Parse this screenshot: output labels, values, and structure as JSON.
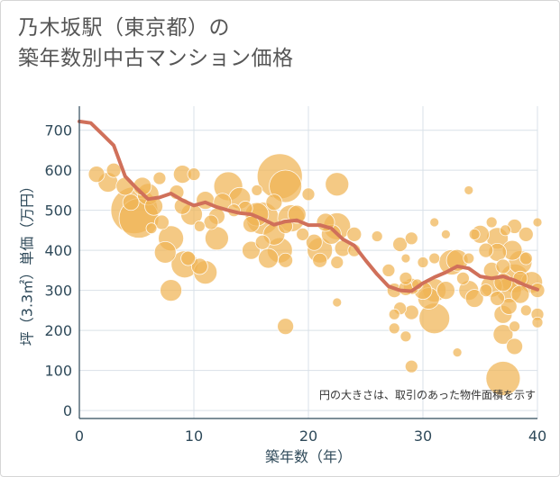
{
  "header": {
    "title_line1": "乃木坂駅（東京都）の",
    "title_line2": "築年数別中古マンション価格"
  },
  "colors": {
    "bubble": "#f0b455",
    "line": "#d0705a",
    "grid": "#d9e1e8",
    "axis": "#2f4a5a"
  },
  "chart_data": {
    "type": "scatter",
    "title": "乃木坂駅（東京都）の 築年数別中古マンション価格",
    "xlabel": "築年数（年）",
    "ylabel": "坪（3.3㎡）単価（万円）",
    "xlim": [
      0,
      40
    ],
    "ylim": [
      -20,
      760
    ],
    "xticks": [
      "0",
      "10",
      "20",
      "30",
      "40"
    ],
    "yticks": [
      "0",
      "100",
      "200",
      "300",
      "400",
      "500",
      "600",
      "700"
    ],
    "grid": true,
    "note": "円の大きさは、取引のあった物件面積を示す",
    "series": [
      {
        "type": "scatter",
        "points": [
          [
            1.5,
            590,
            9
          ],
          [
            2.5,
            570,
            11
          ],
          [
            3,
            600,
            8
          ],
          [
            4,
            560,
            10
          ],
          [
            4.5,
            520,
            9
          ],
          [
            4.8,
            500,
            26
          ],
          [
            5.2,
            480,
            22
          ],
          [
            5.5,
            560,
            10
          ],
          [
            6,
            540,
            12
          ],
          [
            6.3,
            455,
            6
          ],
          [
            6.5,
            510,
            10
          ],
          [
            7,
            580,
            7
          ],
          [
            7.2,
            470,
            8
          ],
          [
            7.5,
            395,
            12
          ],
          [
            8,
            430,
            14
          ],
          [
            8,
            300,
            12
          ],
          [
            8.5,
            545,
            8
          ],
          [
            9,
            590,
            10
          ],
          [
            9,
            510,
            9
          ],
          [
            9.2,
            365,
            15
          ],
          [
            9.5,
            380,
            8
          ],
          [
            9.8,
            490,
            12
          ],
          [
            10,
            590,
            7
          ],
          [
            10.5,
            460,
            6
          ],
          [
            10.5,
            360,
            9
          ],
          [
            11,
            345,
            13
          ],
          [
            11,
            525,
            10
          ],
          [
            11.5,
            470,
            8
          ],
          [
            12,
            430,
            13
          ],
          [
            12,
            485,
            9
          ],
          [
            12.5,
            520,
            10
          ],
          [
            13,
            560,
            16
          ],
          [
            13.5,
            500,
            7
          ],
          [
            14,
            530,
            12
          ],
          [
            14.5,
            505,
            8
          ],
          [
            15,
            465,
            9
          ],
          [
            15,
            400,
            10
          ],
          [
            15.5,
            550,
            6
          ],
          [
            15.5,
            490,
            13
          ],
          [
            16,
            480,
            18
          ],
          [
            16,
            420,
            8
          ],
          [
            16.5,
            380,
            11
          ],
          [
            17,
            440,
            12
          ],
          [
            17,
            520,
            9
          ],
          [
            17.5,
            585,
            25
          ],
          [
            17.5,
            400,
            14
          ],
          [
            18,
            560,
            18
          ],
          [
            18,
            460,
            8
          ],
          [
            18,
            375,
            8
          ],
          [
            18,
            210,
            9
          ],
          [
            18.5,
            480,
            15
          ],
          [
            19,
            490,
            10
          ],
          [
            19.5,
            440,
            7
          ],
          [
            20,
            540,
            7
          ],
          [
            20.5,
            420,
            9
          ],
          [
            21,
            400,
            14
          ],
          [
            21,
            375,
            8
          ],
          [
            21.5,
            470,
            10
          ],
          [
            22,
            440,
            11
          ],
          [
            22.5,
            565,
            13
          ],
          [
            22.5,
            460,
            15
          ],
          [
            22.5,
            370,
            7
          ],
          [
            22.5,
            270,
            5
          ],
          [
            23,
            405,
            9
          ],
          [
            24,
            440,
            8
          ],
          [
            24,
            400,
            7
          ],
          [
            26,
            435,
            6
          ],
          [
            27,
            350,
            7
          ],
          [
            27.5,
            300,
            8
          ],
          [
            27.5,
            240,
            6
          ],
          [
            27.5,
            205,
            6
          ],
          [
            28,
            415,
            8
          ],
          [
            28,
            255,
            7
          ],
          [
            28.5,
            380,
            5
          ],
          [
            28.5,
            330,
            7
          ],
          [
            28.5,
            305,
            8
          ],
          [
            28.5,
            185,
            6
          ],
          [
            29,
            430,
            7
          ],
          [
            29,
            310,
            9
          ],
          [
            29,
            245,
            8
          ],
          [
            29,
            110,
            7
          ],
          [
            29.5,
            315,
            6
          ],
          [
            30,
            370,
            6
          ],
          [
            30,
            300,
            10
          ],
          [
            30.5,
            280,
            12
          ],
          [
            31,
            470,
            5
          ],
          [
            31,
            380,
            6
          ],
          [
            31,
            300,
            13
          ],
          [
            31,
            230,
            17
          ],
          [
            32,
            440,
            5
          ],
          [
            32,
            300,
            10
          ],
          [
            32.5,
            370,
            14
          ],
          [
            33,
            375,
            12
          ],
          [
            33,
            145,
            5
          ],
          [
            33.5,
            330,
            7
          ],
          [
            34,
            550,
            5
          ],
          [
            34,
            300,
            11
          ],
          [
            34,
            380,
            6
          ],
          [
            34.5,
            280,
            10
          ],
          [
            34.5,
            440,
            6
          ],
          [
            35,
            440,
            10
          ],
          [
            35.5,
            400,
            8
          ],
          [
            35.5,
            300,
            7
          ],
          [
            36,
            350,
            9
          ],
          [
            36,
            470,
            6
          ],
          [
            36,
            310,
            12
          ],
          [
            36.5,
            280,
            8
          ],
          [
            36.5,
            395,
            10
          ],
          [
            36.5,
            430,
            12
          ],
          [
            37,
            360,
            8
          ],
          [
            37,
            320,
            10
          ],
          [
            37,
            240,
            10
          ],
          [
            37,
            80,
            19
          ],
          [
            37,
            190,
            11
          ],
          [
            37.2,
            450,
            6
          ],
          [
            37.5,
            300,
            14
          ],
          [
            37.5,
            260,
            9
          ],
          [
            37.8,
            400,
            11
          ],
          [
            38,
            330,
            16
          ],
          [
            38,
            460,
            8
          ],
          [
            38,
            210,
            6
          ],
          [
            38,
            160,
            9
          ],
          [
            38.5,
            370,
            13
          ],
          [
            38.5,
            290,
            10
          ],
          [
            38.5,
            330,
            8
          ],
          [
            39,
            440,
            8
          ],
          [
            39,
            380,
            7
          ],
          [
            39,
            250,
            6
          ],
          [
            39.5,
            320,
            12
          ],
          [
            40,
            470,
            5
          ],
          [
            40,
            300,
            8
          ],
          [
            40,
            240,
            7
          ],
          [
            40,
            220,
            6
          ]
        ]
      },
      {
        "type": "line",
        "points": [
          [
            0,
            722
          ],
          [
            1,
            718
          ],
          [
            2,
            690
          ],
          [
            3,
            662
          ],
          [
            4,
            585
          ],
          [
            5,
            555
          ],
          [
            6,
            528
          ],
          [
            7,
            532
          ],
          [
            8,
            542
          ],
          [
            9,
            525
          ],
          [
            10,
            512
          ],
          [
            11,
            520
          ],
          [
            12,
            508
          ],
          [
            13,
            500
          ],
          [
            14,
            493
          ],
          [
            15,
            490
          ],
          [
            16,
            478
          ],
          [
            17,
            464
          ],
          [
            18,
            472
          ],
          [
            19,
            475
          ],
          [
            20,
            463
          ],
          [
            21,
            463
          ],
          [
            22,
            455
          ],
          [
            23,
            428
          ],
          [
            24,
            412
          ],
          [
            25,
            375
          ],
          [
            26,
            340
          ],
          [
            27,
            310
          ],
          [
            28,
            300
          ],
          [
            29,
            298
          ],
          [
            30,
            318
          ],
          [
            31,
            333
          ],
          [
            32,
            345
          ],
          [
            33,
            360
          ],
          [
            34,
            355
          ],
          [
            35,
            335
          ],
          [
            36,
            330
          ],
          [
            37,
            335
          ],
          [
            38,
            325
          ],
          [
            39,
            312
          ],
          [
            40,
            302
          ]
        ]
      }
    ]
  }
}
